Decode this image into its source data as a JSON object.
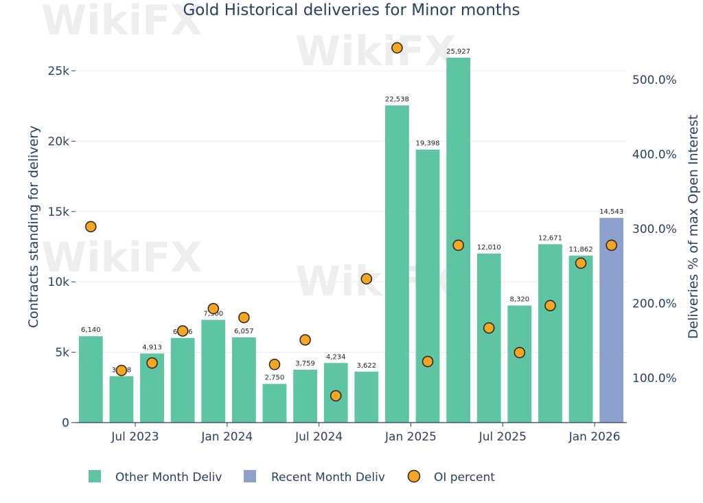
{
  "colors": {
    "other": "#5ec4a2",
    "recent": "#8ea0cc",
    "oi_fill": "#f5a623",
    "oi_stroke": "#222222",
    "grid": "#e8ecf1",
    "axis": "#2a3f5f"
  },
  "watermark": {
    "text": "WikiFX"
  },
  "chart_data": {
    "type": "bar",
    "title": "Gold Historical deliveries for Minor months",
    "ylabel": "Contracts standing for delivery",
    "y2label": "Deliveries % of max Open Interest",
    "ylim": [
      0,
      27000
    ],
    "y2lim": [
      0.4,
      5.5
    ],
    "yticks": [
      0,
      5000,
      10000,
      15000,
      20000,
      25000
    ],
    "yticklabels": [
      "0",
      "5k",
      "10k",
      "15k",
      "20k",
      "25k"
    ],
    "y2ticks": [
      1.0,
      2.0,
      3.0,
      4.0,
      5.0
    ],
    "y2ticklabels": [
      "100.0%",
      "200.0%",
      "300.0%",
      "400.0%",
      "500.0%"
    ],
    "categories": [
      "May 2023",
      "Jun 2023",
      "Aug 2023",
      "Oct 2023",
      "Dec 2023",
      "Feb 2024",
      "Apr 2024",
      "Jun 2024",
      "Aug 2024",
      "Oct 2024",
      "Dec 2024",
      "Feb 2025",
      "Apr 2025",
      "Jun 2025",
      "Aug 2025",
      "Oct 2025",
      "Dec 2025",
      "Feb 2026"
    ],
    "xticks": [
      {
        "label": "Jul 2023",
        "pos": 1.45
      },
      {
        "label": "Jan 2024",
        "pos": 4.45
      },
      {
        "label": "Jul 2024",
        "pos": 7.45
      },
      {
        "label": "Jan 2025",
        "pos": 10.45
      },
      {
        "label": "Jul 2025",
        "pos": 13.45
      },
      {
        "label": "Jan 2026",
        "pos": 16.45
      }
    ],
    "series": [
      {
        "name": "Other Month Deliv",
        "values": [
          6140,
          3298,
          4913,
          6016,
          7300,
          6057,
          2750,
          3759,
          4234,
          3622,
          22538,
          19398,
          25927,
          12010,
          8320,
          12671,
          11862,
          null
        ],
        "labels": [
          "6,140",
          "3,298",
          "4,913",
          "6,016",
          "7,300",
          "6,057",
          "2,750",
          "3,759",
          "4,234",
          "3,622",
          "22,538",
          "19,398",
          "25,927",
          "12,010",
          "8,320",
          "12,671",
          "11,862",
          ""
        ]
      },
      {
        "name": "Recent Month Deliv",
        "values": [
          null,
          null,
          null,
          null,
          null,
          null,
          null,
          null,
          null,
          null,
          null,
          null,
          null,
          null,
          null,
          null,
          null,
          14543
        ],
        "labels": [
          "",
          "",
          "",
          "",
          "",
          "",
          "",
          "",
          "",
          "",
          "",
          "",
          "",
          "",
          "",
          "",
          "",
          "14,543"
        ]
      },
      {
        "name": "OI percent",
        "axis": "y2",
        "values": [
          3.03,
          1.1,
          1.2,
          1.63,
          1.93,
          1.81,
          1.18,
          1.51,
          0.76,
          2.33,
          5.43,
          1.22,
          2.78,
          1.67,
          1.34,
          1.97,
          2.54,
          2.78
        ]
      }
    ],
    "legend": "bottom",
    "grid": true
  }
}
